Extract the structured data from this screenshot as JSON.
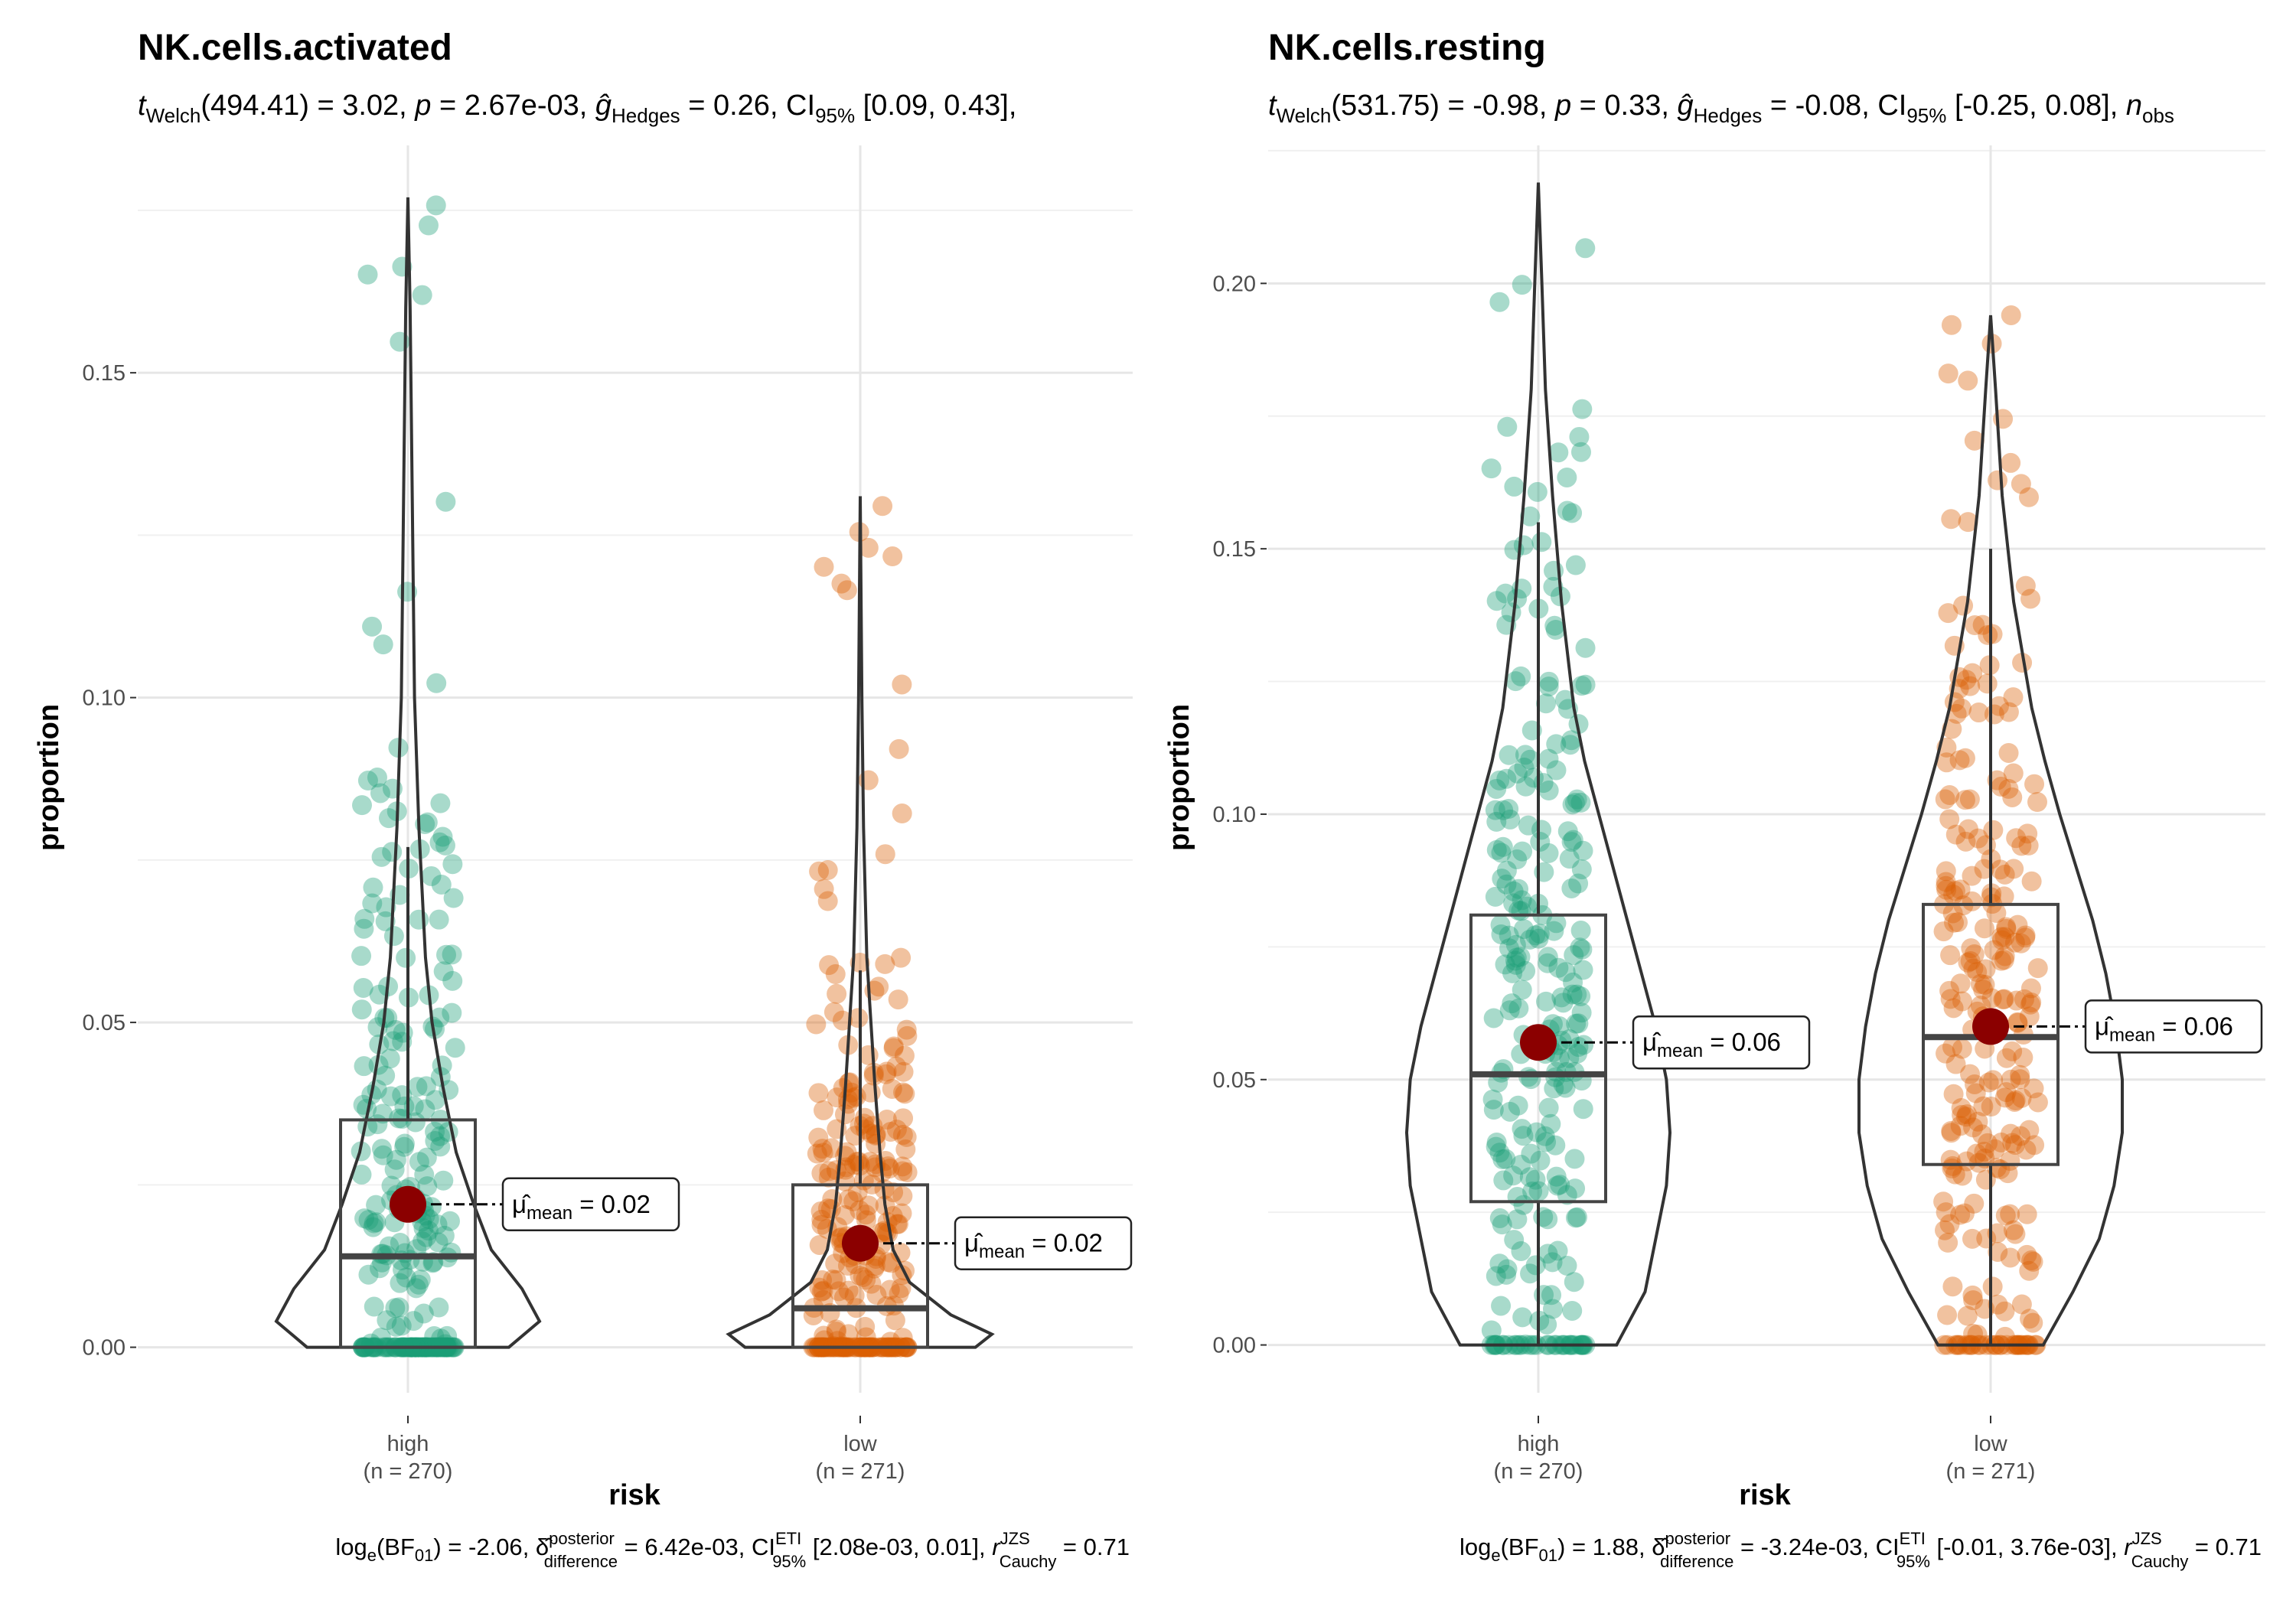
{
  "chart_data": [
    {
      "type": "violin-box-scatter",
      "title": "NK.cells.activated",
      "subtitle": "t_Welch(494.41) = 3.02, p = 2.67e-03, ĝ_Hedges = 0.26, CI95% [0.09, 0.43],",
      "subtitle_parts": {
        "stat": "494.41",
        "t": "3.02",
        "p": "2.67e-03",
        "g": "0.26",
        "ci": "[0.09, 0.43],"
      },
      "xlabel": "risk",
      "ylabel": "proportion",
      "ylim": [
        -0.007,
        0.185
      ],
      "yticks": [
        0.0,
        0.05,
        0.1,
        0.15
      ],
      "ytick_labels": [
        "0.00",
        "0.05",
        "0.10",
        "0.15"
      ],
      "categories": [
        "high",
        "low"
      ],
      "category_n": [
        "(n = 270)",
        "(n = 271)"
      ],
      "groups": [
        {
          "name": "high",
          "color": "#1b9e77",
          "q1": 0.0,
          "median": 0.014,
          "q3": 0.035,
          "whisker_low": 0.0,
          "whisker_high": 0.077,
          "max": 0.177,
          "mean": 0.022,
          "mean_label": "= 0.02",
          "violin": [
            [
              0.0,
              0.046
            ],
            [
              0.004,
              0.06
            ],
            [
              0.009,
              0.052
            ],
            [
              0.015,
              0.038
            ],
            [
              0.022,
              0.03
            ],
            [
              0.03,
              0.022
            ],
            [
              0.04,
              0.016
            ],
            [
              0.05,
              0.011
            ],
            [
              0.06,
              0.008
            ],
            [
              0.08,
              0.005
            ],
            [
              0.1,
              0.003
            ],
            [
              0.13,
              0.002
            ],
            [
              0.16,
              0.001
            ],
            [
              0.177,
              0.0
            ]
          ]
        },
        {
          "name": "low",
          "color": "#d95f02",
          "q1": 0.0,
          "median": 0.006,
          "q3": 0.025,
          "whisker_low": 0.0,
          "whisker_high": 0.058,
          "max": 0.131,
          "mean": 0.016,
          "mean_label": "= 0.02",
          "violin": [
            [
              0.0,
              0.14
            ],
            [
              0.002,
              0.16
            ],
            [
              0.005,
              0.11
            ],
            [
              0.01,
              0.06
            ],
            [
              0.015,
              0.04
            ],
            [
              0.022,
              0.03
            ],
            [
              0.03,
              0.024
            ],
            [
              0.04,
              0.018
            ],
            [
              0.05,
              0.013
            ],
            [
              0.06,
              0.008
            ],
            [
              0.08,
              0.004
            ],
            [
              0.1,
              0.002
            ],
            [
              0.131,
              0.0
            ]
          ]
        }
      ],
      "caption": "loge(BF01) = -2.06, δ̂posterior difference = 6.42e-03, CI ETI 95% [2.08e-03, 0.01], r JZS Cauchy = 0.71",
      "caption_parts": {
        "bf": "-2.06",
        "delta": "6.42e-03",
        "ci": "[2.08e-03, 0.01],",
        "r": "0.71"
      }
    },
    {
      "type": "violin-box-scatter",
      "title": "NK.cells.resting",
      "subtitle": "t_Welch(531.75) = -0.98, p = 0.33, ĝ_Hedges = -0.08, CI95% [-0.25, 0.08], n_obs",
      "subtitle_parts": {
        "stat": "531.75",
        "t": "-0.98",
        "p": "0.33",
        "g": "-0.08",
        "ci": "[-0.25, 0.08],"
      },
      "xlabel": "risk",
      "ylabel": "proportion",
      "ylim": [
        -0.009,
        0.226
      ],
      "yticks": [
        0.0,
        0.05,
        0.1,
        0.15,
        0.2
      ],
      "ytick_labels": [
        "0.00",
        "0.05",
        "0.10",
        "0.15",
        "0.20"
      ],
      "categories": [
        "high",
        "low"
      ],
      "category_n": [
        "(n = 270)",
        "(n = 271)"
      ],
      "groups": [
        {
          "name": "high",
          "color": "#1b9e77",
          "q1": 0.027,
          "median": 0.051,
          "q3": 0.081,
          "whisker_low": 0.0,
          "whisker_high": 0.155,
          "max": 0.219,
          "mean": 0.057,
          "mean_label": "= 0.06",
          "violin": [
            [
              0.0,
              0.044
            ],
            [
              0.01,
              0.06
            ],
            [
              0.02,
              0.066
            ],
            [
              0.03,
              0.072
            ],
            [
              0.04,
              0.074
            ],
            [
              0.05,
              0.072
            ],
            [
              0.06,
              0.066
            ],
            [
              0.07,
              0.058
            ],
            [
              0.08,
              0.05
            ],
            [
              0.09,
              0.042
            ],
            [
              0.1,
              0.034
            ],
            [
              0.11,
              0.026
            ],
            [
              0.12,
              0.02
            ],
            [
              0.14,
              0.013
            ],
            [
              0.16,
              0.008
            ],
            [
              0.18,
              0.004
            ],
            [
              0.2,
              0.002
            ],
            [
              0.219,
              0.0
            ]
          ]
        },
        {
          "name": "low",
          "color": "#d95f02",
          "q1": 0.034,
          "median": 0.058,
          "q3": 0.083,
          "whisker_low": 0.0,
          "whisker_high": 0.15,
          "max": 0.194,
          "mean": 0.06,
          "mean_label": "= 0.06",
          "violin": [
            [
              0.0,
              0.032
            ],
            [
              0.01,
              0.05
            ],
            [
              0.02,
              0.066
            ],
            [
              0.03,
              0.075
            ],
            [
              0.04,
              0.08
            ],
            [
              0.05,
              0.08
            ],
            [
              0.06,
              0.076
            ],
            [
              0.07,
              0.07
            ],
            [
              0.08,
              0.062
            ],
            [
              0.09,
              0.052
            ],
            [
              0.1,
              0.042
            ],
            [
              0.11,
              0.033
            ],
            [
              0.12,
              0.025
            ],
            [
              0.14,
              0.014
            ],
            [
              0.16,
              0.007
            ],
            [
              0.18,
              0.003
            ],
            [
              0.194,
              0.0
            ]
          ]
        }
      ],
      "caption": "loge(BF01) = 1.88, δ̂posterior difference = -3.24e-03, CI ETI 95% [-0.01, 3.76e-03], r JZS Cauchy = 0.71",
      "caption_parts": {
        "bf": "1.88",
        "delta": "-3.24e-03",
        "ci": "[-0.01, 3.76e-03],",
        "r": "0.71"
      }
    }
  ]
}
